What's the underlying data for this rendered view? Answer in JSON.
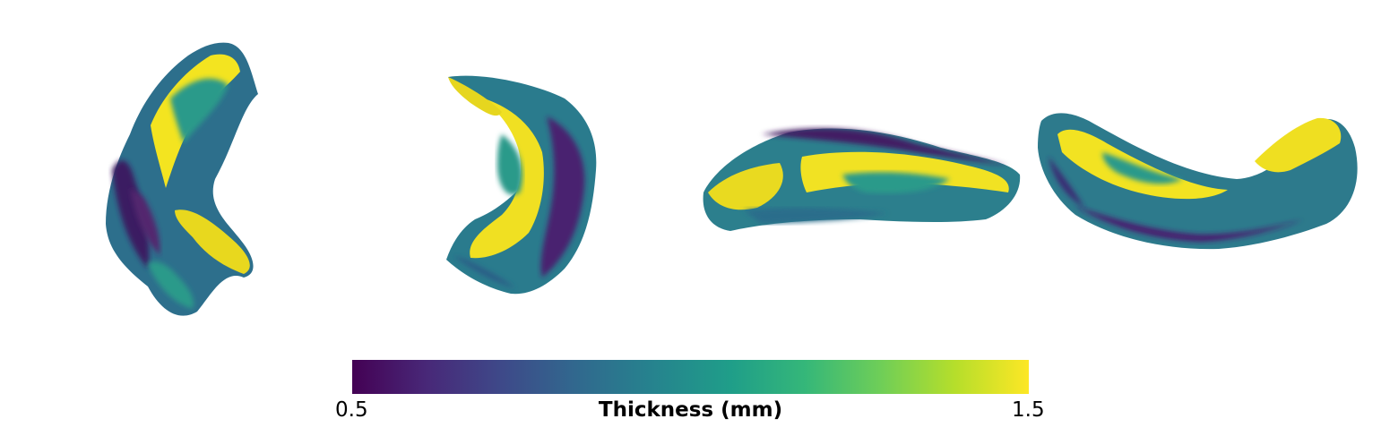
{
  "figure": {
    "views": [
      {
        "name": "view-1"
      },
      {
        "name": "view-2"
      },
      {
        "name": "view-3"
      },
      {
        "name": "view-4"
      }
    ]
  },
  "colorbar": {
    "colormap": "viridis",
    "stops": [
      "#440154",
      "#482878",
      "#3e4989",
      "#31688e",
      "#26828e",
      "#1f9e89",
      "#35b779",
      "#6ece58",
      "#b5de2b",
      "#fde725"
    ],
    "min_label": "0.5",
    "max_label": "1.5",
    "title": "Thickness (mm)"
  }
}
